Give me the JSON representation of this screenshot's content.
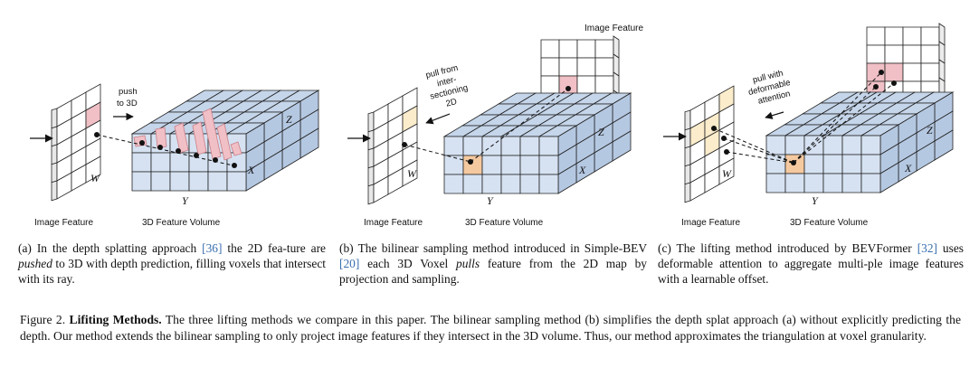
{
  "colors": {
    "voxel_top": "#c5d5ea",
    "voxel_front": "#d6e2f2",
    "voxel_side": "#b5c8e2",
    "highlight_pink": "#f0c0c6",
    "highlight_orange": "#f5c9a0",
    "highlight_yellow": "#fbeccb",
    "link": "#3a6fb0"
  },
  "panels": [
    {
      "image_label": "Image Feature",
      "volume_label": "3D Feature Volume",
      "annotation_lines": [
        "push",
        "to 3D"
      ],
      "axis_w": "W",
      "axis_y": "Y",
      "axis_x": "X",
      "axis_z": "Z"
    },
    {
      "image_label": "Image Feature",
      "top_image_label": "Image Feature",
      "volume_label": "3D Feature Volume",
      "annotation_lines": [
        "pull from",
        "inter-",
        "sectioning",
        "2D"
      ],
      "axis_w": "W",
      "axis_y": "Y",
      "axis_x": "X",
      "axis_z": "Z"
    },
    {
      "image_label": "Image Feature",
      "volume_label": "3D Feature Volume",
      "annotation_lines": [
        "pull with",
        "deformable",
        "attention"
      ],
      "axis_w": "W",
      "axis_y": "Y",
      "axis_x": "X",
      "axis_z": "Z"
    }
  ],
  "subcaptions": {
    "a": {
      "prefix": "(a) In the depth splatting approach ",
      "ref": "[36]",
      "mid": " the 2D fea-ture are ",
      "emph": "pushed",
      "suffix": " to 3D with depth prediction, filling voxels that intersect with its ray."
    },
    "b": {
      "prefix": "(b) The bilinear sampling method introduced in Simple-BEV ",
      "ref": "[20]",
      "mid": " each 3D Voxel ",
      "emph": "pulls",
      "suffix": " feature from the 2D map by projection and sampling."
    },
    "c": {
      "prefix": "(c) The lifting method introduced by BEVFormer ",
      "ref": "[32]",
      "suffix": " uses deformable attention to aggregate multi-ple image features with a learnable offset."
    }
  },
  "caption": {
    "label": "Figure 2.",
    "title": "Lifiting Methods.",
    "text": " The three lifting methods we compare in this paper. The bilinear sampling method (b) simplifies the depth splat approach (a) without explicitly predicting the depth. Our method extends the bilinear sampling to only project image features if they intersect in the 3D volume. Thus, our method approximates the triangulation at voxel granularity."
  }
}
